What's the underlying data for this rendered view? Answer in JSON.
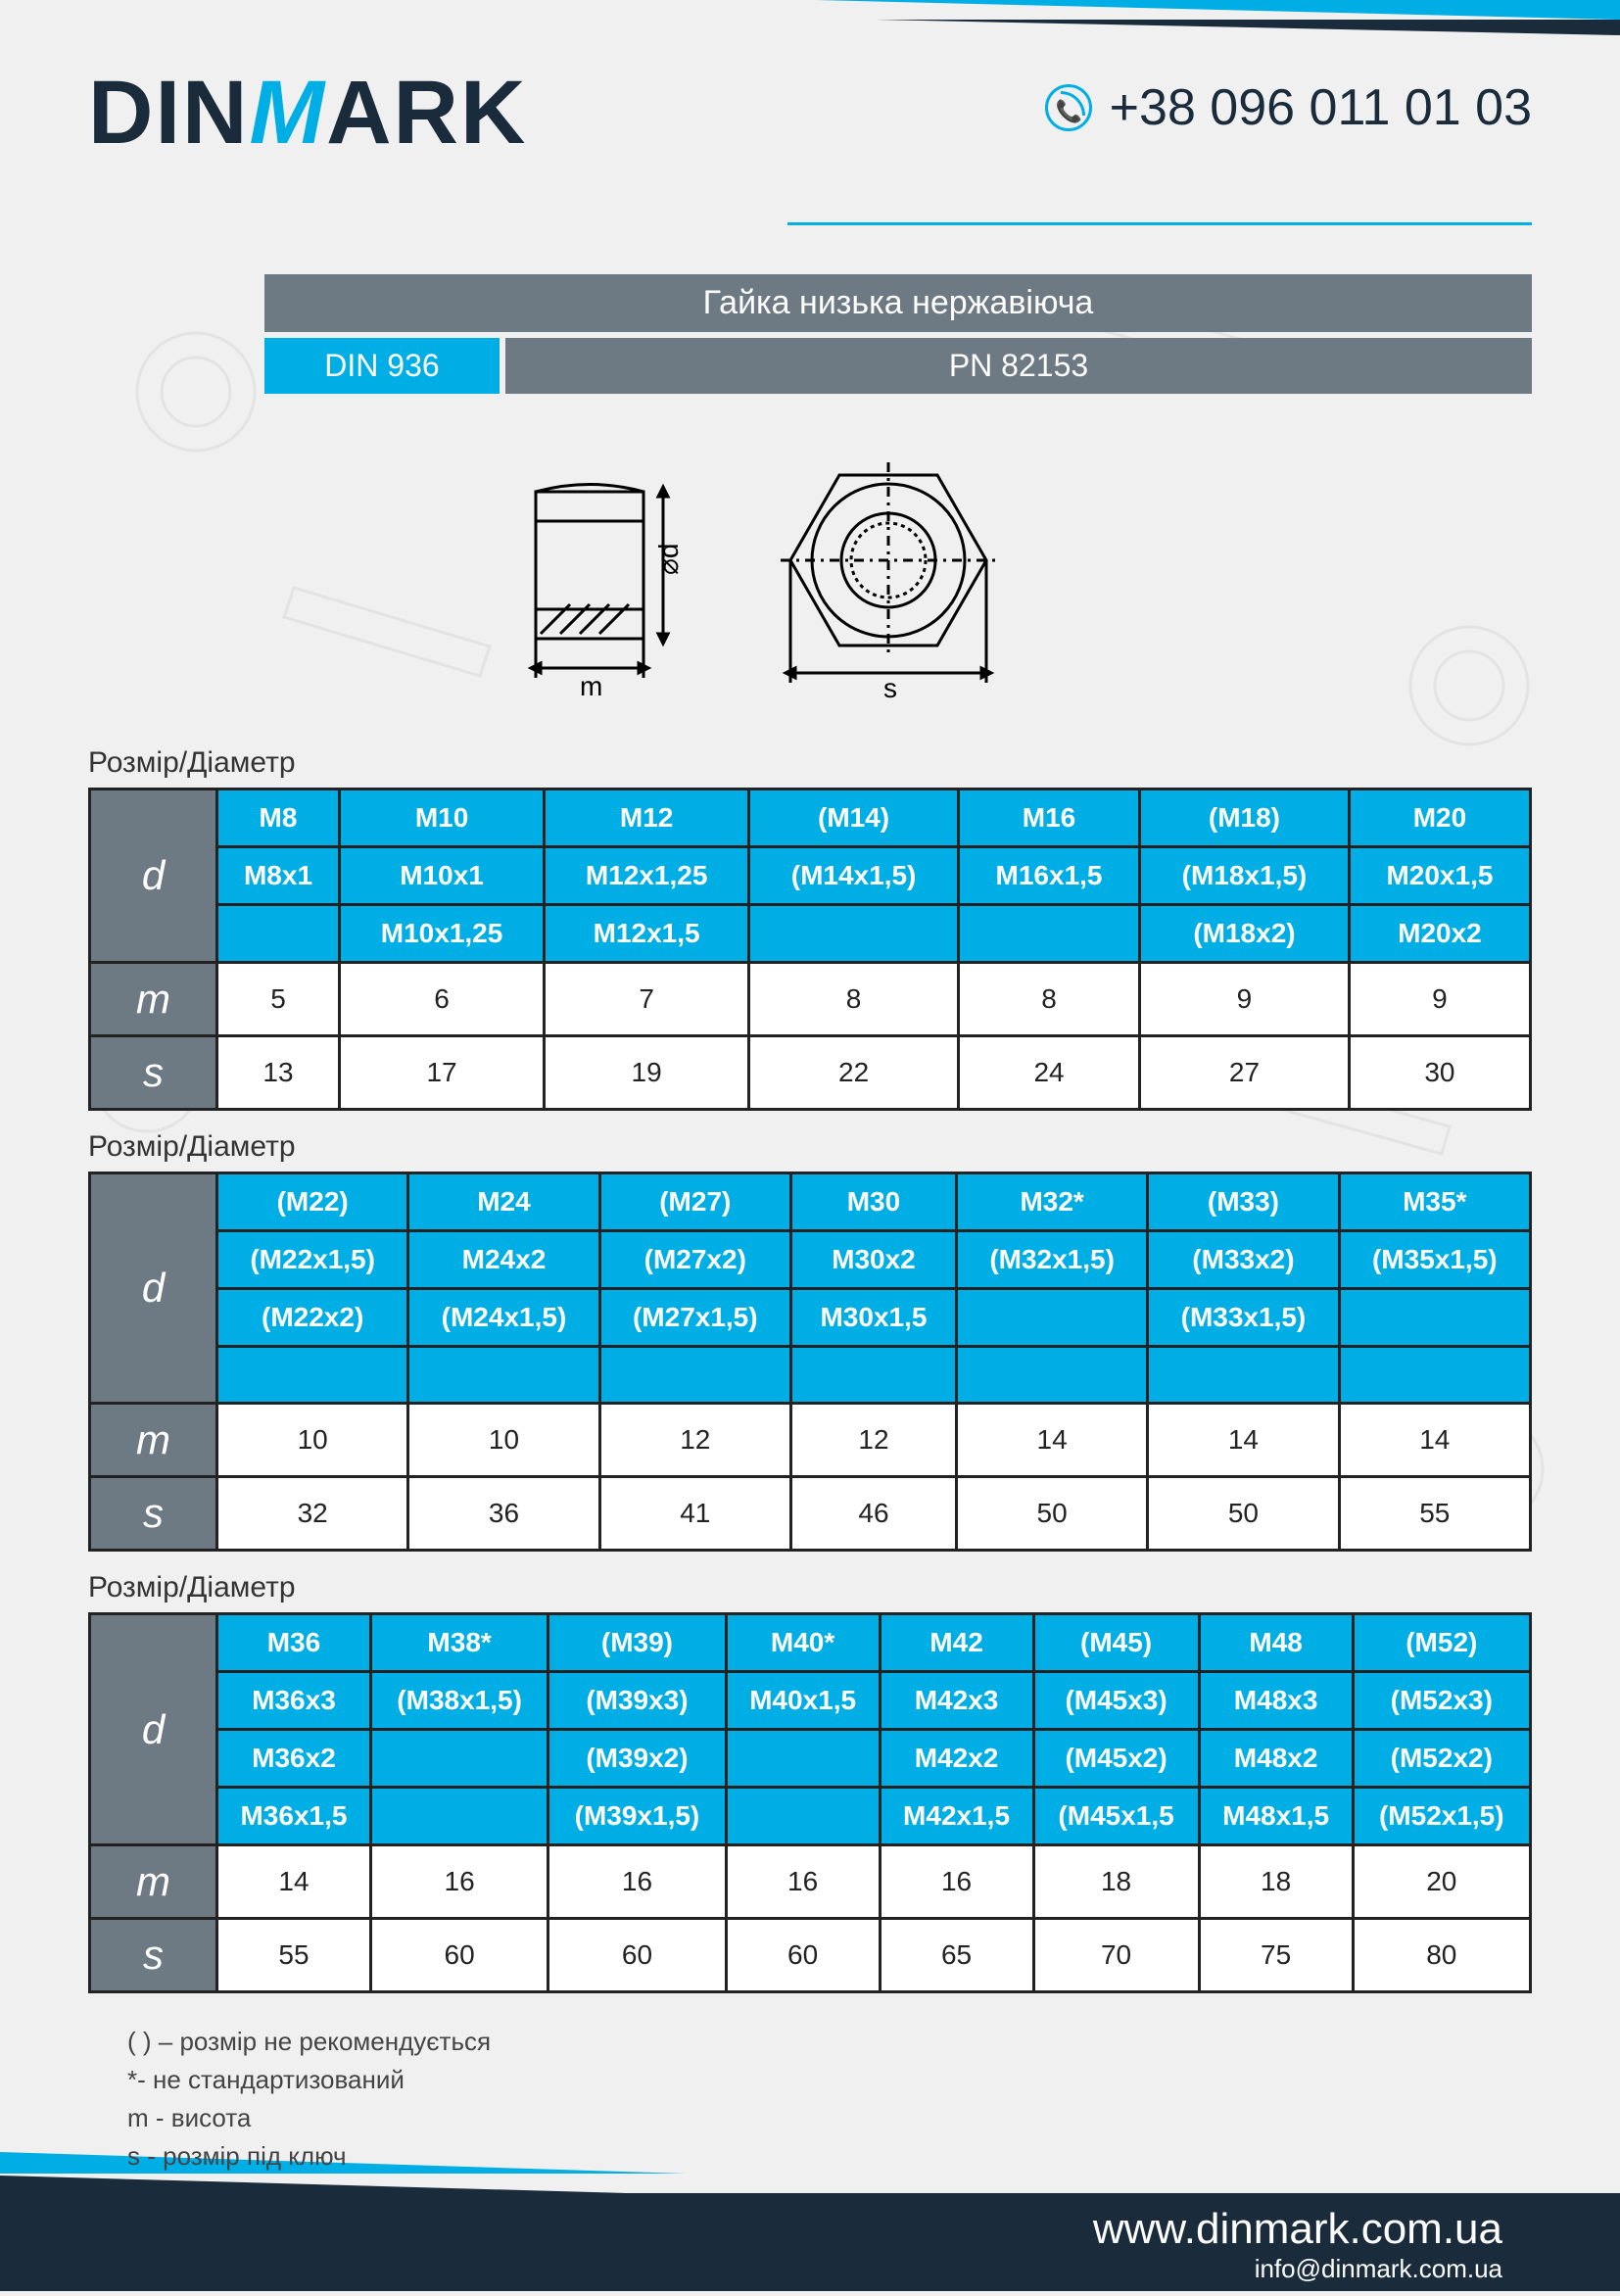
{
  "header": {
    "logo_pre": "DIN",
    "logo_m": "M",
    "logo_post": "ARK",
    "phone": "+38 096 011 01 03"
  },
  "title": {
    "main": "Гайка низька нержавіюча",
    "spec_left": "DIN 936",
    "spec_right": "PN 82153"
  },
  "diagram_labels": {
    "d": "⌀d",
    "m": "m",
    "s": "s"
  },
  "tables": [
    {
      "title": "Розмір/Діаметр",
      "d_rows": 3,
      "cols": 7,
      "d": [
        [
          "M8",
          "M10",
          "M12",
          "(M14)",
          "M16",
          "(M18)",
          "M20"
        ],
        [
          "M8x1",
          "M10x1",
          "M12x1,25",
          "(M14x1,5)",
          "M16x1,5",
          "(M18x1,5)",
          "M20x1,5"
        ],
        [
          "",
          "M10x1,25",
          "M12x1,5",
          "",
          "",
          "(M18x2)",
          "M20x2"
        ]
      ],
      "m": [
        "5",
        "6",
        "7",
        "8",
        "8",
        "9",
        "9"
      ],
      "s": [
        "13",
        "17",
        "19",
        "22",
        "24",
        "27",
        "30"
      ]
    },
    {
      "title": "Розмір/Діаметр",
      "d_rows": 4,
      "cols": 7,
      "d": [
        [
          "(M22)",
          "M24",
          "(M27)",
          "M30",
          "M32*",
          "(M33)",
          "M35*"
        ],
        [
          "(M22x1,5)",
          "M24x2",
          "(M27x2)",
          "M30x2",
          "(M32x1,5)",
          "(M33x2)",
          "(M35x1,5)"
        ],
        [
          "(M22x2)",
          "(M24x1,5)",
          "(M27x1,5)",
          "M30x1,5",
          "",
          "(M33x1,5)",
          ""
        ],
        [
          "",
          "",
          "",
          "",
          "",
          "",
          ""
        ]
      ],
      "m": [
        "10",
        "10",
        "12",
        "12",
        "14",
        "14",
        "14"
      ],
      "s": [
        "32",
        "36",
        "41",
        "46",
        "50",
        "50",
        "55"
      ]
    },
    {
      "title": "Розмір/Діаметр",
      "d_rows": 4,
      "cols": 8,
      "d": [
        [
          "M36",
          "M38*",
          "(M39)",
          "M40*",
          "M42",
          "(M45)",
          "M48",
          "(M52)"
        ],
        [
          "M36x3",
          "(M38x1,5)",
          "(M39x3)",
          "M40x1,5",
          "M42x3",
          "(M45x3)",
          "M48x3",
          "(M52x3)"
        ],
        [
          "M36x2",
          "",
          "(M39x2)",
          "",
          "M42x2",
          "(M45x2)",
          "M48x2",
          "(M52x2)"
        ],
        [
          "M36x1,5",
          "",
          "(M39x1,5)",
          "",
          "M42x1,5",
          "(M45x1,5",
          "M48x1,5",
          "(M52x1,5)"
        ]
      ],
      "m": [
        "14",
        "16",
        "16",
        "16",
        "16",
        "18",
        "18",
        "20"
      ],
      "s": [
        "55",
        "60",
        "60",
        "60",
        "65",
        "70",
        "75",
        "80"
      ]
    }
  ],
  "row_labels": {
    "d": "d",
    "m": "m",
    "s": "s"
  },
  "notes": [
    "( ) – розмір не рекомендується",
    "*- не стандартизований",
    "m - висота",
    "s - розмір під ключ"
  ],
  "footer": {
    "url": "www.dinmark.com.ua",
    "email": "info@dinmark.com.ua"
  },
  "colors": {
    "accent": "#00aee6",
    "dark": "#1a2b3c",
    "gray": "#6d7a84",
    "border": "#222222",
    "bg": "#f0f0f0"
  }
}
